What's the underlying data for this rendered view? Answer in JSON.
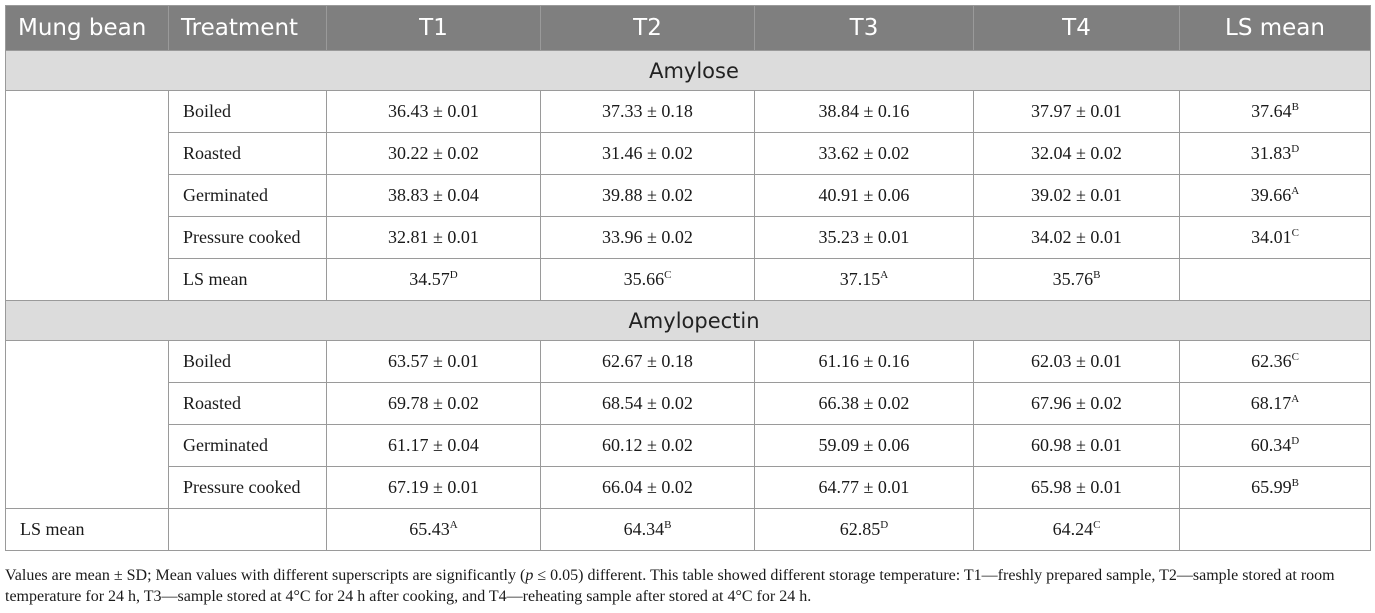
{
  "header": {
    "col_mung_bean": "Mung bean",
    "col_treatment": "Treatment",
    "col_t1": "T1",
    "col_t2": "T2",
    "col_t3": "T3",
    "col_t4": "T4",
    "col_ls_mean": "LS mean"
  },
  "amylose": {
    "title": "Amylose",
    "rows": [
      {
        "treatment": "Boiled",
        "t1": "36.43 ± 0.01",
        "t2": "37.33 ± 0.18",
        "t3": "38.84 ± 0.16",
        "t4": "37.97 ± 0.01",
        "ls_value": "37.64",
        "ls_sup": "B"
      },
      {
        "treatment": "Roasted",
        "t1": "30.22 ± 0.02",
        "t2": "31.46 ± 0.02",
        "t3": "33.62 ± 0.02",
        "t4": "32.04 ± 0.02",
        "ls_value": "31.83",
        "ls_sup": "D"
      },
      {
        "treatment": "Germinated",
        "t1": "38.83 ± 0.04",
        "t2": "39.88 ± 0.02",
        "t3": "40.91 ± 0.06",
        "t4": "39.02 ± 0.01",
        "ls_value": "39.66",
        "ls_sup": "A"
      },
      {
        "treatment": "Pressure cooked",
        "t1": "32.81 ± 0.01",
        "t2": "33.96 ± 0.02",
        "t3": "35.23 ± 0.01",
        "t4": "34.02 ± 0.01",
        "ls_value": "34.01",
        "ls_sup": "C"
      }
    ],
    "ls_mean": {
      "label": "LS mean",
      "t1": "34.57",
      "t1_sup": "D",
      "t2": "35.66",
      "t2_sup": "C",
      "t3": "37.15",
      "t3_sup": "A",
      "t4": "35.76",
      "t4_sup": "B"
    }
  },
  "amylopectin": {
    "title": "Amylopectin",
    "rows": [
      {
        "treatment": "Boiled",
        "t1": "63.57 ± 0.01",
        "t2": "62.67 ± 0.18",
        "t3": "61.16 ± 0.16",
        "t4": "62.03 ± 0.01",
        "ls_value": "62.36",
        "ls_sup": "C"
      },
      {
        "treatment": "Roasted",
        "t1": "69.78 ± 0.02",
        "t2": "68.54 ± 0.02",
        "t3": "66.38 ± 0.02",
        "t4": "67.96 ± 0.02",
        "ls_value": "68.17",
        "ls_sup": "A"
      },
      {
        "treatment": "Germinated",
        "t1": "61.17 ± 0.04",
        "t2": "60.12 ± 0.02",
        "t3": "59.09 ± 0.06",
        "t4": "60.98 ± 0.01",
        "ls_value": "60.34",
        "ls_sup": "D"
      },
      {
        "treatment": "Pressure cooked",
        "t1": "67.19 ± 0.01",
        "t2": "66.04 ± 0.02",
        "t3": "64.77 ± 0.01",
        "t4": "65.98 ± 0.01",
        "ls_value": "65.99",
        "ls_sup": "B"
      }
    ],
    "ls_mean": {
      "label": "LS mean",
      "t1": "65.43",
      "t1_sup": "A",
      "t2": "64.34",
      "t2_sup": "B",
      "t3": "62.85",
      "t3_sup": "D",
      "t4": "64.24",
      "t4_sup": "C"
    }
  },
  "footnote": {
    "part1": "Values are mean ± SD; Mean values with different superscripts are significantly (",
    "p_symbol": "p",
    "part2": " ≤ 0.05) different. This table showed different storage temperature: T1—freshly prepared sample, T2—sample stored at room temperature for 24 h, T3—sample stored at 4°C for 24 h after cooking, and T4—reheating sample after stored at 4°C for 24 h."
  }
}
